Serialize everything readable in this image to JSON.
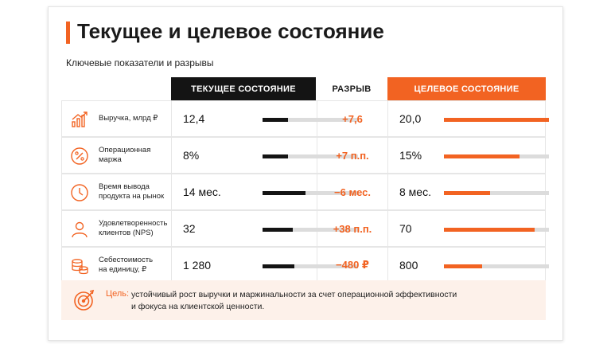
{
  "header": {
    "title": "Текущее и целевое состояние",
    "subtitle": "Ключевые показатели и разрывы"
  },
  "columns": {
    "current": "ТЕКУЩЕЕ СОСТОЯНИЕ",
    "gap": "РАЗРЫВ",
    "target": "ЦЕЛЕВОЕ СОСТОЯНИЕ"
  },
  "colors": {
    "accent": "#f26322",
    "dark": "#141414",
    "track": "#dcdcdc",
    "goal_bg": "#fdf1ea"
  },
  "rows": [
    {
      "icon": "revenue-growth-chart-icon",
      "label_lines": [
        "Выручка, млрд ₽"
      ],
      "current": "12,4",
      "current_fill": 0.27,
      "gap": "+7,6",
      "target": "20,0",
      "target_fill": 1.0
    },
    {
      "icon": "percent-icon",
      "label_lines": [
        "Операционная",
        "маржа"
      ],
      "current": "8%",
      "current_fill": 0.27,
      "gap": "+7 п.п.",
      "target": "15%",
      "target_fill": 0.72
    },
    {
      "icon": "clock-icon",
      "label_lines": [
        "Время вывода",
        "продукта на рынок"
      ],
      "current": "14 мес.",
      "current_fill": 0.45,
      "gap": "−6 мес.",
      "target": "8 мес.",
      "target_fill": 0.44
    },
    {
      "icon": "user-icon",
      "label_lines": [
        "Удовлетворенность",
        "клиентов (NPS)"
      ],
      "current": "32",
      "current_fill": 0.32,
      "gap": "+38 п.п.",
      "target": "70",
      "target_fill": 0.86
    },
    {
      "icon": "coins-stack-icon",
      "label_lines": [
        "Себестоимость",
        "на единицу, ₽"
      ],
      "current": "1 280",
      "current_fill": 0.33,
      "gap": "−480 ₽",
      "target": "800",
      "target_fill": 0.36
    }
  ],
  "goal": {
    "icon": "target-icon",
    "label": "Цель:",
    "lines": [
      "устойчивый рост выручки и маржинальности за счет операционной эффективности",
      "и фокуса на клиентской ценности."
    ]
  }
}
